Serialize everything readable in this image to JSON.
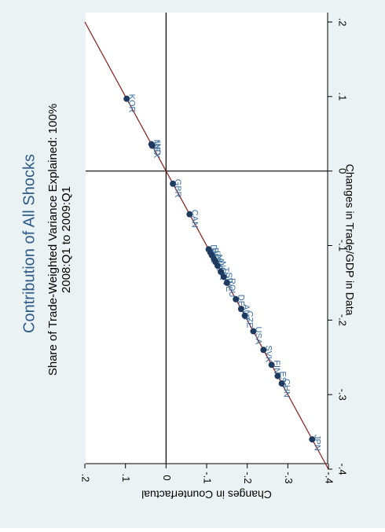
{
  "chart_data": {
    "type": "scatter",
    "title": "Contribution of All Shocks",
    "subtitle_line1": "Share of Trade-Weighted Variance Explained: 100%",
    "subtitle_line2": "2008:Q1 to 2009:Q1",
    "xlabel": "Changes in Trade/GDP in Data",
    "ylabel": "Changes in Counterfactual",
    "xlim": [
      -0.4,
      0.2
    ],
    "ylim": [
      -0.4,
      0.2
    ],
    "x_ticks": [
      {
        "value": -0.4,
        "label": "-.4"
      },
      {
        "value": -0.3,
        "label": "-.3"
      },
      {
        "value": -0.2,
        "label": "-.2"
      },
      {
        "value": -0.1,
        "label": "-.1"
      },
      {
        "value": 0,
        "label": "0"
      },
      {
        "value": 0.1,
        "label": ".1"
      },
      {
        "value": 0.2,
        "label": ".2"
      }
    ],
    "y_ticks": [
      {
        "value": -0.4,
        "label": "-.4"
      },
      {
        "value": -0.3,
        "label": "-.3"
      },
      {
        "value": -0.2,
        "label": "-.2"
      },
      {
        "value": -0.1,
        "label": "-.1"
      },
      {
        "value": 0,
        "label": "0"
      },
      {
        "value": 0.1,
        "label": ".1"
      },
      {
        "value": 0.2,
        "label": ".2"
      }
    ],
    "fit_line": {
      "slope": 1,
      "intercept": 0,
      "color": "#8b1a1a"
    },
    "reference_lines": {
      "x": 0,
      "y": 0
    },
    "grid": false,
    "orientation": "rotated-90-clockwise",
    "colors": {
      "points": "#1f3a5f",
      "labels": "#3a6fa0",
      "title": "#2e5c8a",
      "fit_line": "#8b1a1a",
      "background": "#eaf2f3"
    },
    "points": [
      {
        "label": "KOR",
        "x": 0.097,
        "y": 0.097
      },
      {
        "label": "MEX",
        "x": 0.036,
        "y": 0.036
      },
      {
        "label": "IND",
        "x": 0.034,
        "y": 0.034
      },
      {
        "label": "GBR",
        "x": -0.017,
        "y": -0.017
      },
      {
        "label": "CAN",
        "x": -0.058,
        "y": -0.058
      },
      {
        "label": "DNK",
        "x": -0.105,
        "y": -0.105
      },
      {
        "label": "BEL",
        "x": -0.109,
        "y": -0.109
      },
      {
        "label": "ITA",
        "x": -0.113,
        "y": -0.113
      },
      {
        "label": "NLD",
        "x": -0.118,
        "y": -0.118
      },
      {
        "label": "AUS",
        "x": -0.122,
        "y": -0.122
      },
      {
        "label": "NOR",
        "x": -0.127,
        "y": -0.127
      },
      {
        "label": "TUR",
        "x": -0.135,
        "y": -0.135
      },
      {
        "label": "SWE",
        "x": -0.142,
        "y": -0.142
      },
      {
        "label": "ROU",
        "x": -0.15,
        "y": -0.15
      },
      {
        "label": "DEU",
        "x": -0.172,
        "y": -0.172
      },
      {
        "label": "AUT",
        "x": -0.185,
        "y": -0.185
      },
      {
        "label": "CZE",
        "x": -0.194,
        "y": -0.194
      },
      {
        "label": "USA",
        "x": -0.215,
        "y": -0.215
      },
      {
        "label": "SVK",
        "x": -0.24,
        "y": -0.24
      },
      {
        "label": "FIN",
        "x": -0.26,
        "y": -0.26
      },
      {
        "label": "ESP",
        "x": -0.275,
        "y": -0.275
      },
      {
        "label": "CHN",
        "x": -0.285,
        "y": -0.285
      },
      {
        "label": "JPN",
        "x": -0.36,
        "y": -0.36
      }
    ]
  }
}
